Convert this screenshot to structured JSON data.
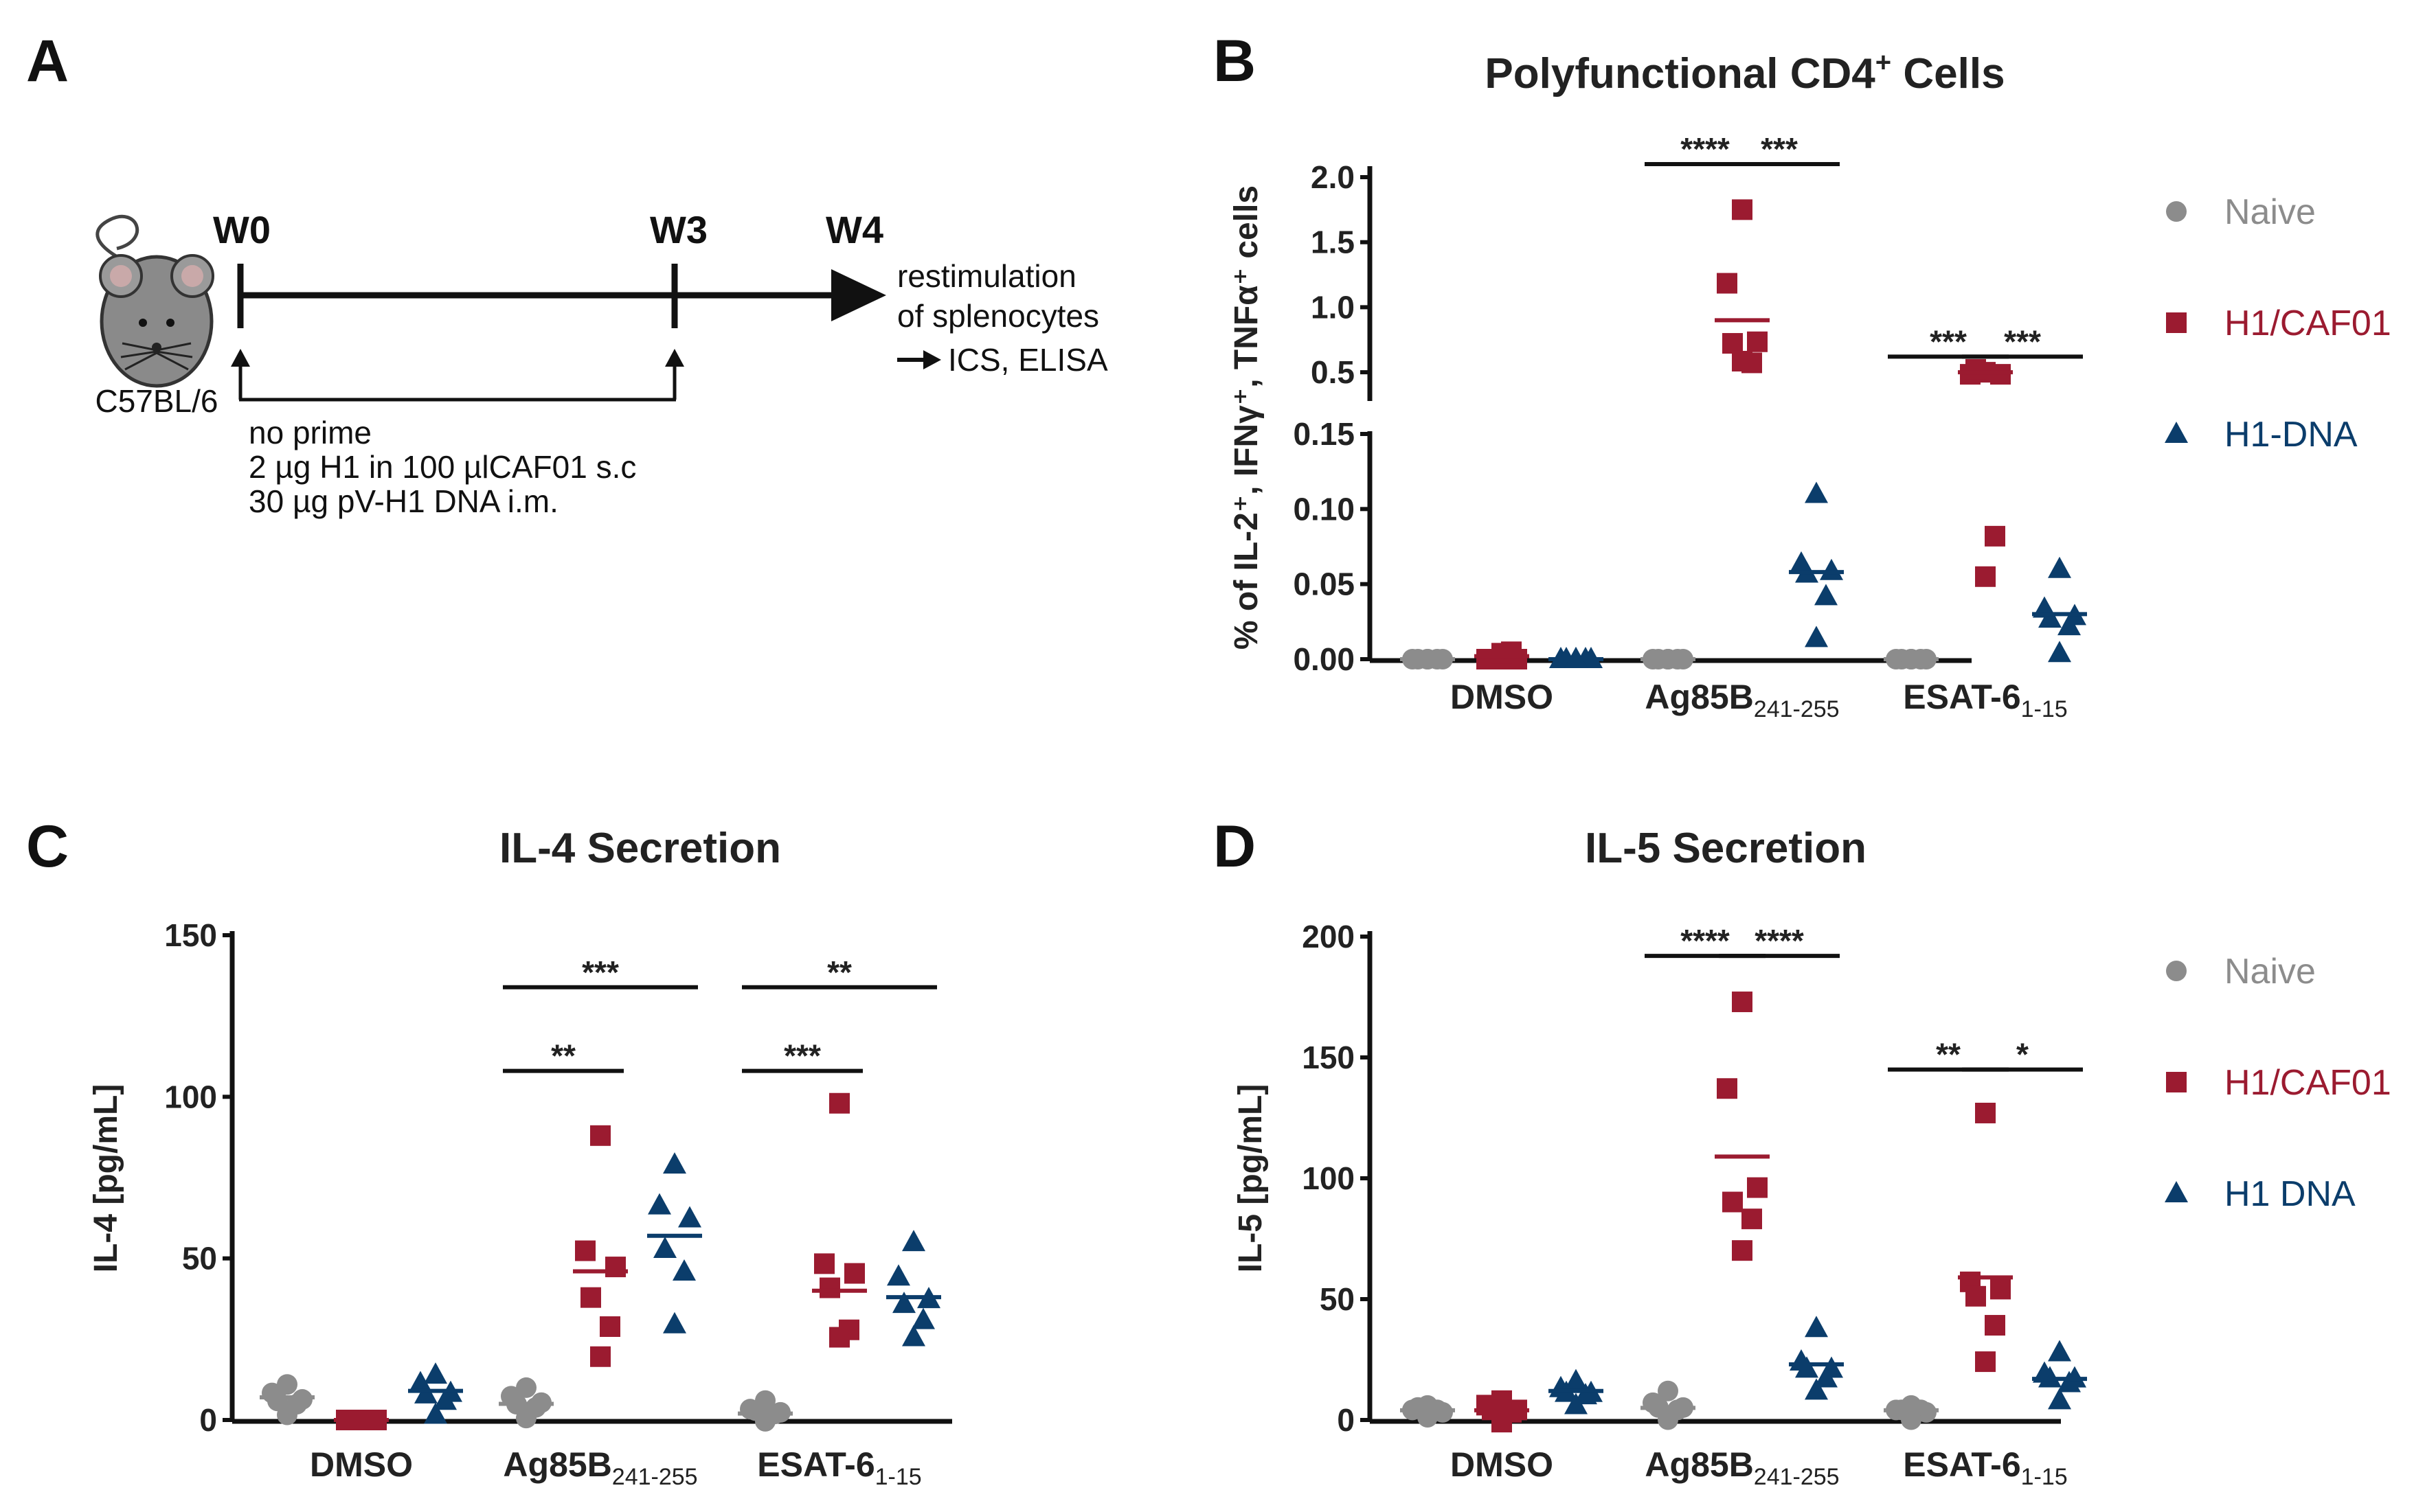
{
  "colors": {
    "naive": "#8c8c8c",
    "h1caf01": "#9b1b30",
    "h1dna": "#0b3d6b",
    "axis": "#111111"
  },
  "panelA": {
    "letter": "A",
    "strain": "C57BL/6",
    "weeks": [
      "W0",
      "W3",
      "W4"
    ],
    "readout": [
      "restimulation",
      "of splenocytes",
      "ICS, ELISA"
    ],
    "groups": [
      "no prime",
      "2 µg H1 in 100 µlCAF01 s.c",
      "30 µg pV-H1 DNA i.m."
    ]
  },
  "chart_data": [
    {
      "panel": "B",
      "type": "scatter",
      "title": "Polyfunctional  CD4",
      "title_sup": "+",
      "title_end": " Cells",
      "ylabel": "% of IL-2⁺, IFNγ⁺, TNFα⁺ cells",
      "ylim_lower": [
        0,
        0.15
      ],
      "ylim_upper": [
        0.3,
        2.0
      ],
      "yticks_lower": [
        {
          "v": 0,
          "t": "0.00"
        },
        {
          "v": 0.05,
          "t": "0.05"
        },
        {
          "v": 0.1,
          "t": "0.10"
        },
        {
          "v": 0.15,
          "t": "0.15"
        }
      ],
      "yticks_upper": [
        {
          "v": 0.5,
          "t": "0.5"
        },
        {
          "v": 1.0,
          "t": "1.0"
        },
        {
          "v": 1.5,
          "t": "1.5"
        },
        {
          "v": 2.0,
          "t": "2.0"
        }
      ],
      "categories": [
        {
          "main": "DMSO",
          "sub": ""
        },
        {
          "main": "Ag85B",
          "sub": "241-255"
        },
        {
          "main": "ESAT-6",
          "sub": "1-15"
        }
      ],
      "legend": [
        "Naive",
        "H1/CAF01",
        "H1-DNA"
      ],
      "series": [
        {
          "name": "Naive",
          "marker": "circle",
          "values": [
            [
              0,
              0,
              0,
              0,
              0,
              0
            ],
            [
              0,
              0,
              0,
              0,
              0,
              0
            ],
            [
              0,
              0,
              0,
              0,
              0,
              0
            ]
          ],
          "means": [
            0,
            0,
            0
          ]
        },
        {
          "name": "H1/CAF01",
          "marker": "square",
          "values": [
            [
              0,
              0,
              0,
              0,
              0.003,
              0.007
            ],
            [
              1.75,
              1.2,
              0.75,
              0.7,
              0.55,
              0.62
            ],
            [
              0.5,
              0.5,
              0.5,
              0.5,
              0.08,
              0.058
            ]
          ],
          "means": [
            0.002,
            0.9,
            0.5
          ]
        },
        {
          "name": "H1-DNA",
          "marker": "triangle",
          "values": [
            [
              0,
              0,
              0,
              0,
              0,
              0
            ],
            [
              0.11,
              0.065,
              0.06,
              0.055,
              0.04,
              0.017
            ],
            [
              0.06,
              0.035,
              0.03,
              0.025,
              0.02,
              0.007
            ]
          ],
          "means": [
            0,
            0.058,
            0.03
          ]
        }
      ],
      "significance": [
        {
          "label": "****",
          "cat": 1,
          "from": 0,
          "to": 1,
          "value": 2.1,
          "level": 0
        },
        {
          "label": "***",
          "cat": 1,
          "from": 1,
          "to": 2,
          "value": 2.1,
          "level": 0
        },
        {
          "label": "***",
          "cat": 2,
          "from": 0,
          "to": 1,
          "value": 0.62,
          "level": 0
        },
        {
          "label": "***",
          "cat": 2,
          "from": 1,
          "to": 2,
          "value": 0.62,
          "level": 0
        }
      ]
    },
    {
      "panel": "C",
      "type": "scatter",
      "title": "IL-4 Secretion",
      "ylabel": "IL-4 [pg/mL]",
      "ylim": [
        0,
        150
      ],
      "yticks": [
        {
          "v": 0,
          "t": "0"
        },
        {
          "v": 50,
          "t": "50"
        },
        {
          "v": 100,
          "t": "100"
        },
        {
          "v": 150,
          "t": "150"
        }
      ],
      "categories": [
        {
          "main": "DMSO",
          "sub": ""
        },
        {
          "main": "Ag85B",
          "sub": "241-255"
        },
        {
          "main": "ESAT-6",
          "sub": "1-15"
        }
      ],
      "series": [
        {
          "name": "Naive",
          "marker": "circle",
          "values": [
            [
              11,
              9,
              7,
              5,
              4,
              3
            ],
            [
              10,
              8,
              6,
              4,
              3,
              2
            ],
            [
              6,
              4,
              3,
              2,
              1,
              1
            ]
          ],
          "means": [
            7,
            5,
            2
          ]
        },
        {
          "name": "H1/CAF01",
          "marker": "square",
          "values": [
            [
              0,
              0,
              0,
              0,
              0,
              0
            ],
            [
              88,
              53,
              48,
              37,
              28,
              21
            ],
            [
              98,
              49,
              46,
              40,
              27,
              27
            ]
          ],
          "means": [
            0,
            46,
            40
          ]
        },
        {
          "name": "H1 DNA",
          "marker": "triangle",
          "values": [
            [
              14,
              12,
              9,
              7,
              5,
              3
            ],
            [
              79,
              67,
              63,
              52,
              45,
              31
            ],
            [
              55,
              45,
              38,
              35,
              30,
              27
            ]
          ],
          "means": [
            9,
            57,
            38
          ]
        }
      ],
      "significance": [
        {
          "label": "**",
          "cat": 1,
          "from": 0,
          "to": 1,
          "value": 108,
          "level": 0
        },
        {
          "label": "***",
          "cat": 1,
          "from": 0,
          "to": 2,
          "value": 122,
          "level": 1
        },
        {
          "label": "***",
          "cat": 2,
          "from": 0,
          "to": 1,
          "value": 108,
          "level": 0
        },
        {
          "label": "**",
          "cat": 2,
          "from": 0,
          "to": 2,
          "value": 122,
          "level": 1
        }
      ]
    },
    {
      "panel": "D",
      "type": "scatter",
      "title": "IL-5 Secretion",
      "ylabel": "IL-5 [pg/mL]",
      "ylim": [
        0,
        200
      ],
      "yticks": [
        {
          "v": 0,
          "t": "0"
        },
        {
          "v": 50,
          "t": "50"
        },
        {
          "v": 100,
          "t": "100"
        },
        {
          "v": 150,
          "t": "150"
        },
        {
          "v": 200,
          "t": "200"
        }
      ],
      "categories": [
        {
          "main": "DMSO",
          "sub": ""
        },
        {
          "main": "Ag85B",
          "sub": "241-255"
        },
        {
          "main": "ESAT-6",
          "sub": "1-15"
        }
      ],
      "legend": [
        "Naive",
        "H1/CAF01",
        "H1 DNA"
      ],
      "series": [
        {
          "name": "Naive",
          "marker": "circle",
          "values": [
            [
              6,
              5,
              4,
              4,
              3,
              3
            ],
            [
              12,
              8,
              6,
              4,
              3,
              2
            ],
            [
              6,
              5,
              4,
              3,
              3,
              2
            ]
          ],
          "means": [
            4,
            5,
            4
          ]
        },
        {
          "name": "H1/CAF01",
          "marker": "square",
          "values": [
            [
              8,
              7,
              5,
              3,
              2,
              1
            ],
            [
              173,
              138,
              97,
              89,
              82,
              72
            ],
            [
              127,
              58,
              55,
              50,
              38,
              26
            ]
          ],
          "means": [
            4,
            109,
            59
          ]
        },
        {
          "name": "H1 DNA",
          "marker": "triangle",
          "values": [
            [
              16,
              14,
              12,
              10,
              9,
              8
            ],
            [
              38,
              25,
              22,
              20,
              16,
              14
            ],
            [
              28,
              20,
              18,
              16,
              14,
              10
            ]
          ],
          "means": [
            12,
            23,
            17
          ]
        }
      ],
      "significance": [
        {
          "label": "****",
          "cat": 1,
          "from": 0,
          "to": 1,
          "value": 192,
          "level": 0
        },
        {
          "label": "****",
          "cat": 1,
          "from": 1,
          "to": 2,
          "value": 192,
          "level": 0
        },
        {
          "label": "**",
          "cat": 2,
          "from": 0,
          "to": 1,
          "value": 145,
          "level": 0
        },
        {
          "label": "*",
          "cat": 2,
          "from": 1,
          "to": 2,
          "value": 145,
          "level": 0
        }
      ]
    }
  ]
}
